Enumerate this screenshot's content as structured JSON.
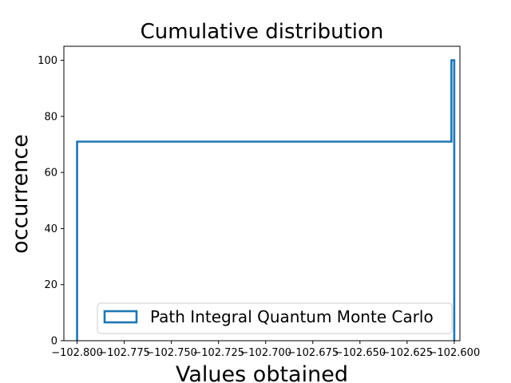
{
  "chart_data": {
    "type": "step",
    "title": "Cumulative distribution",
    "xlabel": "Values obtained",
    "ylabel": "occurrence",
    "xlim": [
      -102.807,
      -102.597
    ],
    "ylim": [
      0,
      105
    ],
    "xticks": [
      -102.8,
      -102.775,
      -102.75,
      -102.725,
      -102.7,
      -102.675,
      -102.65,
      -102.625,
      -102.6
    ],
    "xtick_labels": [
      "−102.800",
      "−102.775",
      "−102.750",
      "−102.725",
      "−102.700",
      "−102.675",
      "−102.650",
      "−102.625",
      "−102.600"
    ],
    "yticks": [
      0,
      20,
      40,
      60,
      80,
      100
    ],
    "ytick_labels": [
      "0",
      "20",
      "40",
      "60",
      "80",
      "100"
    ],
    "grid": false,
    "legend_position": "lower-right",
    "series": [
      {
        "name": "Path Integral Quantum Monte Carlo",
        "color": "#1f77b4",
        "steps": [
          {
            "x": -102.8,
            "y": 0
          },
          {
            "x": -102.8,
            "y": 71
          },
          {
            "x": -102.6015,
            "y": 71
          },
          {
            "x": -102.6015,
            "y": 100
          },
          {
            "x": -102.6,
            "y": 100
          },
          {
            "x": -102.6,
            "y": 0
          }
        ]
      }
    ]
  }
}
